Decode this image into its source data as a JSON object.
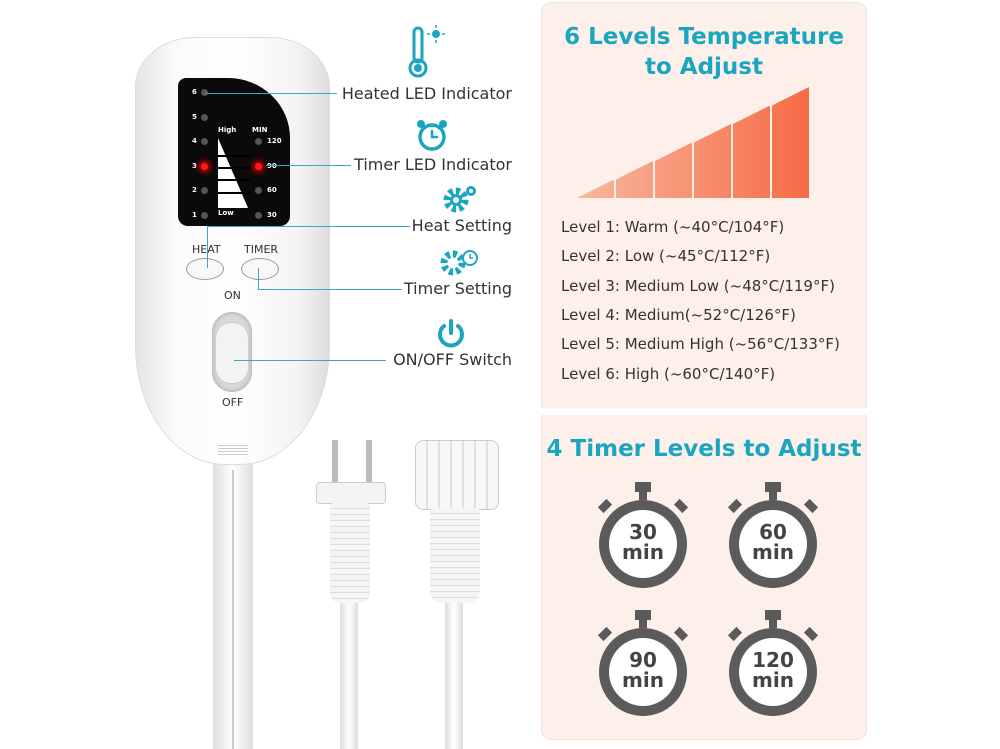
{
  "remote": {
    "heat_levels": [
      "6",
      "5",
      "4",
      "3",
      "2",
      "1"
    ],
    "active_heat_level": "3",
    "heat_scale": {
      "high": "High",
      "low": "Low"
    },
    "timer_header": "MIN",
    "timer_levels": [
      "120",
      "90",
      "60",
      "30"
    ],
    "active_timer": "90",
    "heat_button": "HEAT",
    "timer_button": "TIMER",
    "on_label": "ON",
    "off_label": "OFF"
  },
  "callouts": [
    {
      "label": "Heated LED Indicator",
      "icon": "thermometer-sun-icon"
    },
    {
      "label": "Timer LED Indicator",
      "icon": "alarm-clock-icon"
    },
    {
      "label": "Heat Setting",
      "icon": "gears-icon"
    },
    {
      "label": "Timer Setting",
      "icon": "gear-clock-icon"
    },
    {
      "label": "ON/OFF Switch",
      "icon": "power-icon"
    }
  ],
  "temperature": {
    "title_line1": "6 Levels Temperature",
    "title_line2": "to Adjust",
    "levels": [
      "Level 1: Warm (~40°C/104°F)",
      "Level 2: Low (~45°C/112°F)",
      "Level 3: Medium Low (~48°C/119°F)",
      "Level 4: Medium(~52°C/126°F)",
      "Level 5: Medium High (~56°C/133°F)",
      "Level 6: High (~60°C/140°F)"
    ]
  },
  "timer": {
    "title": "4 Timer Levels to Adjust",
    "options": [
      {
        "value": "30",
        "unit": "min"
      },
      {
        "value": "60",
        "unit": "min"
      },
      {
        "value": "90",
        "unit": "min"
      },
      {
        "value": "120",
        "unit": "min"
      }
    ]
  },
  "colors": {
    "accent": "#1aa6c0",
    "heat": "#f56b45",
    "led_on": "#ff1a1a",
    "panel": "#fdefe9",
    "stopwatch": "#5b5b5b"
  }
}
